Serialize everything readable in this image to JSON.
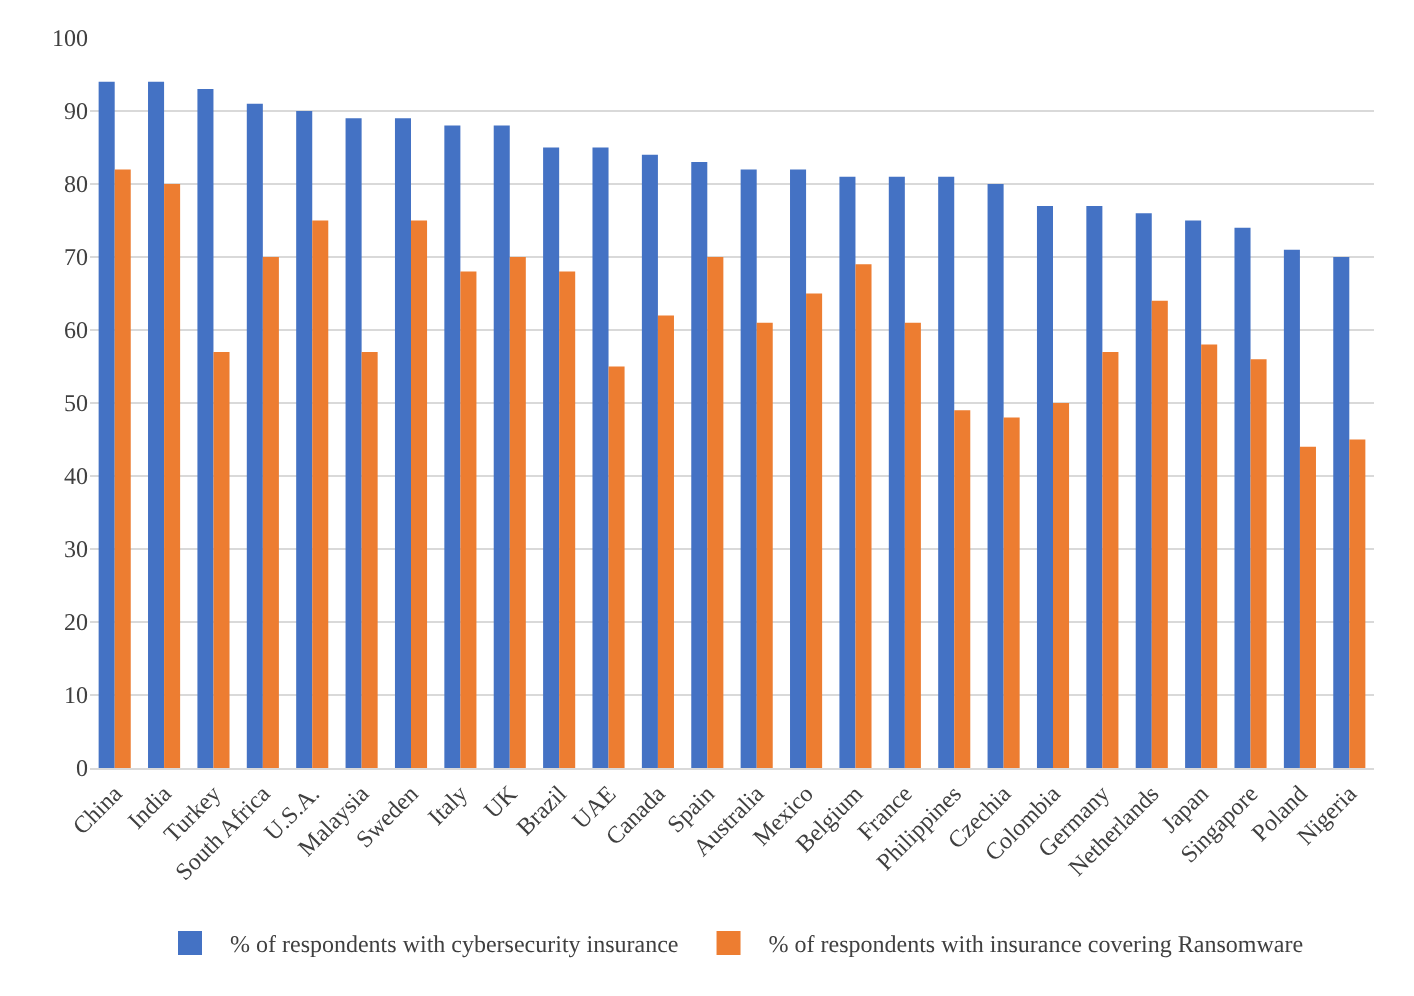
{
  "chart_data": {
    "type": "bar",
    "categories": [
      "China",
      "India",
      "Turkey",
      "South Africa",
      "U.S.A.",
      "Malaysia",
      "Sweden",
      "Italy",
      "UK",
      "Brazil",
      "UAE",
      "Canada",
      "Spain",
      "Australia",
      "Mexico",
      "Belgium",
      "France",
      "Philippines",
      "Czechia",
      "Colombia",
      "Germany",
      "Netherlands",
      "Japan",
      "Singapore",
      "Poland",
      "Nigeria"
    ],
    "series": [
      {
        "name": "% of respondents with cybersecurity insurance",
        "color": "#4472c4",
        "values": [
          94,
          94,
          93,
          91,
          90,
          89,
          89,
          88,
          88,
          85,
          85,
          84,
          83,
          82,
          82,
          81,
          81,
          81,
          80,
          77,
          77,
          76,
          75,
          74,
          71,
          70
        ]
      },
      {
        "name": "% of respondents with insurance covering Ransomware",
        "color": "#ed7d31",
        "values": [
          82,
          80,
          57,
          70,
          75,
          57,
          75,
          68,
          70,
          68,
          55,
          62,
          70,
          61,
          65,
          69,
          61,
          49,
          48,
          50,
          57,
          64,
          58,
          56,
          44,
          45
        ]
      }
    ],
    "ylim": [
      0,
      100
    ],
    "yticks": [
      0,
      10,
      20,
      30,
      40,
      50,
      60,
      70,
      80,
      90,
      100
    ],
    "grid": "y",
    "legend": "bottom"
  }
}
